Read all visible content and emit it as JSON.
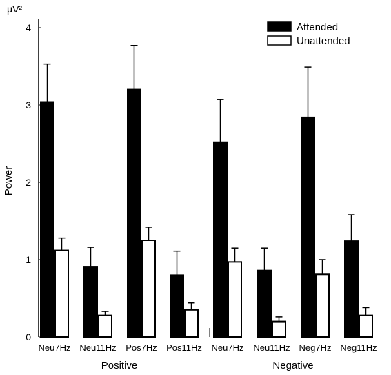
{
  "chart_data": {
    "type": "bar",
    "unit_label": "μV²",
    "ylabel": "Power",
    "ylim": [
      0,
      4
    ],
    "yticks": [
      "0",
      "1",
      "2",
      "3",
      "4"
    ],
    "categories": [
      "Neu7Hz",
      "Neu11Hz",
      "Pos7Hz",
      "Pos11Hz",
      "Neu7Hz",
      "Neu11Hz",
      "Neg7Hz",
      "Neg11Hz"
    ],
    "groups": [
      {
        "label": "Positive",
        "start": 0,
        "end": 3
      },
      {
        "label": "Negative",
        "start": 4,
        "end": 7
      }
    ],
    "series": [
      {
        "name": "Attended",
        "color": "#000000",
        "values": [
          3.04,
          0.91,
          3.2,
          0.8,
          2.52,
          0.86,
          2.84,
          1.24
        ],
        "errors": [
          0.49,
          0.25,
          0.57,
          0.31,
          0.55,
          0.29,
          0.65,
          0.34
        ]
      },
      {
        "name": "Unattended",
        "color": "#ffffff",
        "values": [
          1.12,
          0.28,
          1.25,
          0.35,
          0.97,
          0.2,
          0.81,
          0.28
        ],
        "errors": [
          0.16,
          0.05,
          0.17,
          0.09,
          0.18,
          0.06,
          0.19,
          0.1
        ]
      }
    ],
    "legend_position": "top-right",
    "grid": false
  }
}
